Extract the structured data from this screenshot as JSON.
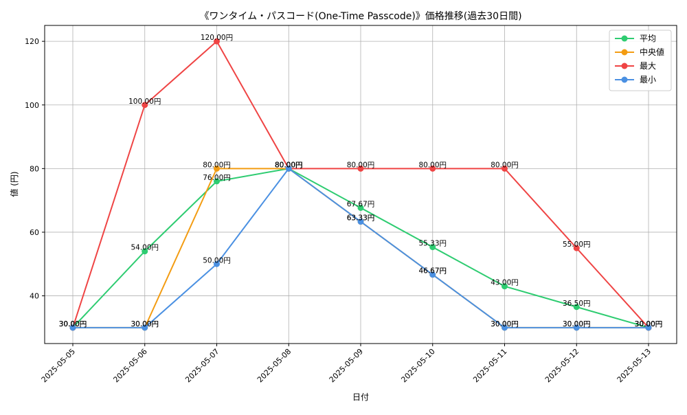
{
  "chart_data": {
    "type": "line",
    "title": "《ワンタイム・パスコード(One-Time Passcode)》価格推移(過去30日間)",
    "xlabel": "日付",
    "ylabel": "値 (円)",
    "categories": [
      "2025-05-05",
      "2025-05-06",
      "2025-05-07",
      "2025-05-08",
      "2025-05-09",
      "2025-05-10",
      "2025-05-11",
      "2025-05-12",
      "2025-05-13"
    ],
    "ylim": [
      25,
      125
    ],
    "yticks": [
      40,
      60,
      80,
      100,
      120
    ],
    "grid": true,
    "legend_position": "top-right",
    "value_suffix": "円",
    "series": [
      {
        "name": "平均",
        "color": "#2ecc71",
        "values": [
          30.0,
          54.0,
          76.0,
          80.0,
          67.67,
          55.33,
          43.0,
          36.5,
          30.0
        ]
      },
      {
        "name": "中央値",
        "color": "#f39c12",
        "values": [
          30.0,
          30.0,
          80.0,
          80.0,
          63.33,
          46.67,
          30.0,
          30.0,
          30.0
        ]
      },
      {
        "name": "最大",
        "color": "#ef4444",
        "values": [
          30.0,
          100.0,
          120.0,
          80.0,
          80.0,
          80.0,
          80.0,
          55.0,
          30.0
        ]
      },
      {
        "name": "最小",
        "color": "#4a90e2",
        "values": [
          30.0,
          30.0,
          50.0,
          80.0,
          63.33,
          46.67,
          30.0,
          30.0,
          30.0
        ]
      }
    ]
  }
}
